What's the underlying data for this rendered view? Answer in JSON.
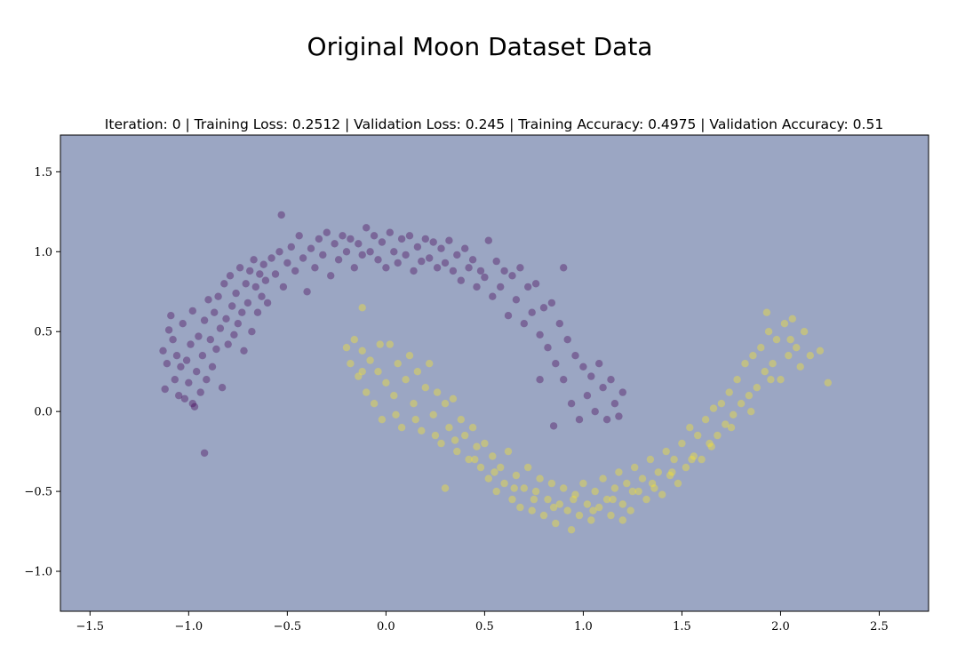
{
  "figure": {
    "title": "Original Moon Dataset Data"
  },
  "chart_data": {
    "type": "scatter",
    "title": "Iteration: 0 | Training Loss: 0.2512 | Validation Loss: 0.245 | Training Accuracy: 0.4975 | Validation Accuracy: 0.51",
    "xlabel": "",
    "ylabel": "",
    "xlim": [
      -1.65,
      2.75
    ],
    "ylim": [
      -1.25,
      1.73
    ],
    "xticks": [
      -1.5,
      -1.0,
      -0.5,
      0.0,
      0.5,
      1.0,
      1.5,
      2.0,
      2.5
    ],
    "xtick_labels": [
      "−1.5",
      "−1.0",
      "−0.5",
      "0.0",
      "0.5",
      "1.0",
      "1.5",
      "2.0",
      "2.5"
    ],
    "yticks": [
      -1.0,
      -0.5,
      0.0,
      0.5,
      1.0,
      1.5
    ],
    "ytick_labels": [
      "−1.0",
      "−0.5",
      "0.0",
      "0.5",
      "1.0",
      "1.5"
    ],
    "grid": false,
    "background_color": "#9ba6c3",
    "series": [
      {
        "color": "#440154",
        "points": [
          [
            -1.13,
            0.38
          ],
          [
            -1.12,
            0.14
          ],
          [
            -1.11,
            0.3
          ],
          [
            -1.1,
            0.51
          ],
          [
            -1.09,
            0.6
          ],
          [
            -1.08,
            0.45
          ],
          [
            -1.07,
            0.2
          ],
          [
            -1.06,
            0.35
          ],
          [
            -1.05,
            0.1
          ],
          [
            -1.04,
            0.28
          ],
          [
            -1.03,
            0.55
          ],
          [
            -1.02,
            0.08
          ],
          [
            -1.01,
            0.32
          ],
          [
            -1.0,
            0.18
          ],
          [
            -0.99,
            0.42
          ],
          [
            -0.98,
            0.63
          ],
          [
            -0.97,
            0.03
          ],
          [
            -0.96,
            0.25
          ],
          [
            -0.95,
            0.47
          ],
          [
            -0.94,
            0.12
          ],
          [
            -0.93,
            0.35
          ],
          [
            -0.92,
            0.57
          ],
          [
            -0.91,
            0.2
          ],
          [
            -0.9,
            0.7
          ],
          [
            -0.89,
            0.45
          ],
          [
            -0.88,
            0.28
          ],
          [
            -0.87,
            0.62
          ],
          [
            -0.86,
            0.39
          ],
          [
            -0.85,
            0.72
          ],
          [
            -0.84,
            0.52
          ],
          [
            -0.83,
            0.15
          ],
          [
            -0.82,
            0.8
          ],
          [
            -0.81,
            0.58
          ],
          [
            -0.8,
            0.42
          ],
          [
            -0.79,
            0.85
          ],
          [
            -0.78,
            0.66
          ],
          [
            -0.77,
            0.48
          ],
          [
            -0.76,
            0.74
          ],
          [
            -0.75,
            0.55
          ],
          [
            -0.74,
            0.9
          ],
          [
            -0.73,
            0.62
          ],
          [
            -0.72,
            0.38
          ],
          [
            -0.71,
            0.8
          ],
          [
            -0.7,
            0.68
          ],
          [
            -0.69,
            0.88
          ],
          [
            -0.68,
            0.5
          ],
          [
            -0.67,
            0.95
          ],
          [
            -0.66,
            0.78
          ],
          [
            -0.65,
            0.62
          ],
          [
            -0.64,
            0.86
          ],
          [
            -0.63,
            0.72
          ],
          [
            -0.62,
            0.92
          ],
          [
            -0.61,
            0.82
          ],
          [
            -0.6,
            0.68
          ],
          [
            -0.58,
            0.96
          ],
          [
            -0.56,
            0.86
          ],
          [
            -0.54,
            1.0
          ],
          [
            -0.53,
            1.23
          ],
          [
            -0.52,
            0.78
          ],
          [
            -0.5,
            0.93
          ],
          [
            -0.48,
            1.03
          ],
          [
            -0.46,
            0.88
          ],
          [
            -0.44,
            1.1
          ],
          [
            -0.42,
            0.96
          ],
          [
            -0.4,
            0.75
          ],
          [
            -0.38,
            1.02
          ],
          [
            -0.36,
            0.9
          ],
          [
            -0.34,
            1.08
          ],
          [
            -0.32,
            0.98
          ],
          [
            -0.3,
            1.12
          ],
          [
            -0.28,
            0.85
          ],
          [
            -0.26,
            1.05
          ],
          [
            -0.24,
            0.95
          ],
          [
            -0.22,
            1.1
          ],
          [
            -0.2,
            1.0
          ],
          [
            -0.18,
            1.08
          ],
          [
            -0.16,
            0.9
          ],
          [
            -0.14,
            1.05
          ],
          [
            -0.12,
            0.98
          ],
          [
            -0.1,
            1.15
          ],
          [
            -0.08,
            1.0
          ],
          [
            -0.06,
            1.1
          ],
          [
            -0.04,
            0.95
          ],
          [
            -0.02,
            1.06
          ],
          [
            0.0,
            0.9
          ],
          [
            0.02,
            1.12
          ],
          [
            0.04,
            1.0
          ],
          [
            0.06,
            0.93
          ],
          [
            0.08,
            1.08
          ],
          [
            0.1,
            0.98
          ],
          [
            0.12,
            1.1
          ],
          [
            0.14,
            0.88
          ],
          [
            0.16,
            1.03
          ],
          [
            0.18,
            0.94
          ],
          [
            0.2,
            1.08
          ],
          [
            0.22,
            0.96
          ],
          [
            0.24,
            1.06
          ],
          [
            0.26,
            0.9
          ],
          [
            0.28,
            1.02
          ],
          [
            0.3,
            0.93
          ],
          [
            0.32,
            1.07
          ],
          [
            0.34,
            0.88
          ],
          [
            0.36,
            0.98
          ],
          [
            0.38,
            0.82
          ],
          [
            0.4,
            1.02
          ],
          [
            0.42,
            0.9
          ],
          [
            0.44,
            0.95
          ],
          [
            0.46,
            0.78
          ],
          [
            0.48,
            0.88
          ],
          [
            0.5,
            0.84
          ],
          [
            0.52,
            1.07
          ],
          [
            0.54,
            0.72
          ],
          [
            0.56,
            0.94
          ],
          [
            0.58,
            0.78
          ],
          [
            0.6,
            0.88
          ],
          [
            0.62,
            0.6
          ],
          [
            0.64,
            0.85
          ],
          [
            0.66,
            0.7
          ],
          [
            0.68,
            0.9
          ],
          [
            0.7,
            0.55
          ],
          [
            0.72,
            0.78
          ],
          [
            0.74,
            0.62
          ],
          [
            0.76,
            0.8
          ],
          [
            0.78,
            0.48
          ],
          [
            0.8,
            0.65
          ],
          [
            0.82,
            0.4
          ],
          [
            0.84,
            0.68
          ],
          [
            0.86,
            0.3
          ],
          [
            0.88,
            0.55
          ],
          [
            0.9,
            0.2
          ],
          [
            0.92,
            0.45
          ],
          [
            0.94,
            0.05
          ],
          [
            0.96,
            0.35
          ],
          [
            0.98,
            -0.05
          ],
          [
            1.0,
            0.28
          ],
          [
            1.02,
            0.1
          ],
          [
            1.04,
            0.22
          ],
          [
            1.06,
            0.0
          ],
          [
            1.08,
            0.3
          ],
          [
            1.1,
            0.15
          ],
          [
            1.12,
            -0.05
          ],
          [
            1.14,
            0.2
          ],
          [
            1.16,
            0.05
          ],
          [
            1.18,
            -0.03
          ],
          [
            1.2,
            0.12
          ],
          [
            0.78,
            0.2
          ],
          [
            0.85,
            -0.09
          ],
          [
            -0.92,
            -0.26
          ],
          [
            0.9,
            0.9
          ],
          [
            -0.98,
            0.05
          ]
        ]
      },
      {
        "color": "#fde725",
        "points": [
          [
            -0.2,
            0.4
          ],
          [
            -0.18,
            0.3
          ],
          [
            -0.16,
            0.45
          ],
          [
            -0.14,
            0.22
          ],
          [
            -0.12,
            0.38
          ],
          [
            -0.1,
            0.12
          ],
          [
            -0.08,
            0.32
          ],
          [
            -0.06,
            0.05
          ],
          [
            -0.04,
            0.25
          ],
          [
            -0.02,
            -0.05
          ],
          [
            0.0,
            0.18
          ],
          [
            0.02,
            0.42
          ],
          [
            0.04,
            0.1
          ],
          [
            0.06,
            0.3
          ],
          [
            0.08,
            -0.1
          ],
          [
            0.1,
            0.2
          ],
          [
            0.12,
            0.35
          ],
          [
            0.14,
            0.05
          ],
          [
            0.16,
            0.25
          ],
          [
            0.18,
            -0.12
          ],
          [
            0.2,
            0.15
          ],
          [
            0.22,
            0.3
          ],
          [
            0.24,
            -0.02
          ],
          [
            0.26,
            0.12
          ],
          [
            0.28,
            -0.2
          ],
          [
            0.3,
            0.05
          ],
          [
            0.32,
            -0.1
          ],
          [
            0.34,
            0.08
          ],
          [
            0.36,
            -0.25
          ],
          [
            0.38,
            -0.05
          ],
          [
            0.4,
            -0.15
          ],
          [
            0.42,
            -0.3
          ],
          [
            0.44,
            -0.1
          ],
          [
            0.46,
            -0.22
          ],
          [
            0.48,
            -0.35
          ],
          [
            0.5,
            -0.2
          ],
          [
            0.52,
            -0.42
          ],
          [
            0.54,
            -0.28
          ],
          [
            0.56,
            -0.5
          ],
          [
            0.58,
            -0.35
          ],
          [
            0.6,
            -0.45
          ],
          [
            0.62,
            -0.25
          ],
          [
            0.64,
            -0.55
          ],
          [
            0.66,
            -0.4
          ],
          [
            0.68,
            -0.6
          ],
          [
            0.7,
            -0.48
          ],
          [
            0.72,
            -0.35
          ],
          [
            0.74,
            -0.62
          ],
          [
            0.76,
            -0.5
          ],
          [
            0.78,
            -0.42
          ],
          [
            0.8,
            -0.65
          ],
          [
            0.82,
            -0.55
          ],
          [
            0.84,
            -0.45
          ],
          [
            0.86,
            -0.7
          ],
          [
            0.88,
            -0.58
          ],
          [
            0.9,
            -0.48
          ],
          [
            0.92,
            -0.62
          ],
          [
            0.94,
            -0.74
          ],
          [
            0.96,
            -0.52
          ],
          [
            0.98,
            -0.65
          ],
          [
            1.0,
            -0.45
          ],
          [
            1.02,
            -0.58
          ],
          [
            1.04,
            -0.68
          ],
          [
            1.06,
            -0.5
          ],
          [
            1.08,
            -0.6
          ],
          [
            1.1,
            -0.42
          ],
          [
            1.12,
            -0.55
          ],
          [
            1.14,
            -0.65
          ],
          [
            1.16,
            -0.48
          ],
          [
            1.18,
            -0.38
          ],
          [
            1.2,
            -0.58
          ],
          [
            1.22,
            -0.45
          ],
          [
            1.24,
            -0.62
          ],
          [
            1.26,
            -0.35
          ],
          [
            1.28,
            -0.5
          ],
          [
            1.3,
            -0.42
          ],
          [
            1.32,
            -0.55
          ],
          [
            1.34,
            -0.3
          ],
          [
            1.36,
            -0.48
          ],
          [
            1.38,
            -0.38
          ],
          [
            1.4,
            -0.52
          ],
          [
            1.42,
            -0.25
          ],
          [
            1.44,
            -0.4
          ],
          [
            1.46,
            -0.3
          ],
          [
            1.48,
            -0.45
          ],
          [
            1.5,
            -0.2
          ],
          [
            1.52,
            -0.35
          ],
          [
            1.54,
            -0.1
          ],
          [
            1.56,
            -0.28
          ],
          [
            1.58,
            -0.15
          ],
          [
            1.6,
            -0.3
          ],
          [
            1.62,
            -0.05
          ],
          [
            1.64,
            -0.2
          ],
          [
            1.66,
            0.02
          ],
          [
            1.68,
            -0.15
          ],
          [
            1.7,
            0.05
          ],
          [
            1.72,
            -0.08
          ],
          [
            1.74,
            0.12
          ],
          [
            1.76,
            -0.02
          ],
          [
            1.78,
            0.2
          ],
          [
            1.8,
            0.05
          ],
          [
            1.82,
            0.3
          ],
          [
            1.84,
            0.1
          ],
          [
            1.86,
            0.35
          ],
          [
            1.88,
            0.15
          ],
          [
            1.9,
            0.4
          ],
          [
            1.92,
            0.25
          ],
          [
            1.94,
            0.5
          ],
          [
            1.96,
            0.3
          ],
          [
            1.98,
            0.45
          ],
          [
            2.0,
            0.2
          ],
          [
            2.02,
            0.55
          ],
          [
            2.04,
            0.35
          ],
          [
            2.06,
            0.58
          ],
          [
            2.08,
            0.4
          ],
          [
            2.1,
            0.28
          ],
          [
            2.12,
            0.5
          ],
          [
            2.15,
            0.35
          ],
          [
            2.2,
            0.38
          ],
          [
            2.24,
            0.18
          ],
          [
            1.93,
            0.62
          ],
          [
            -0.03,
            0.42
          ],
          [
            -0.12,
            0.25
          ],
          [
            0.05,
            -0.02
          ],
          [
            0.15,
            -0.05
          ],
          [
            0.25,
            -0.15
          ],
          [
            0.35,
            -0.18
          ],
          [
            0.45,
            -0.3
          ],
          [
            0.55,
            -0.38
          ],
          [
            0.65,
            -0.48
          ],
          [
            0.75,
            -0.55
          ],
          [
            0.85,
            -0.6
          ],
          [
            0.95,
            -0.55
          ],
          [
            1.05,
            -0.62
          ],
          [
            1.15,
            -0.55
          ],
          [
            1.25,
            -0.5
          ],
          [
            1.35,
            -0.45
          ],
          [
            1.45,
            -0.38
          ],
          [
            1.55,
            -0.3
          ],
          [
            1.65,
            -0.22
          ],
          [
            1.75,
            -0.1
          ],
          [
            1.85,
            0.0
          ],
          [
            1.95,
            0.2
          ],
          [
            2.05,
            0.45
          ],
          [
            -0.12,
            0.65
          ],
          [
            0.3,
            -0.48
          ],
          [
            1.2,
            -0.68
          ]
        ]
      }
    ]
  }
}
